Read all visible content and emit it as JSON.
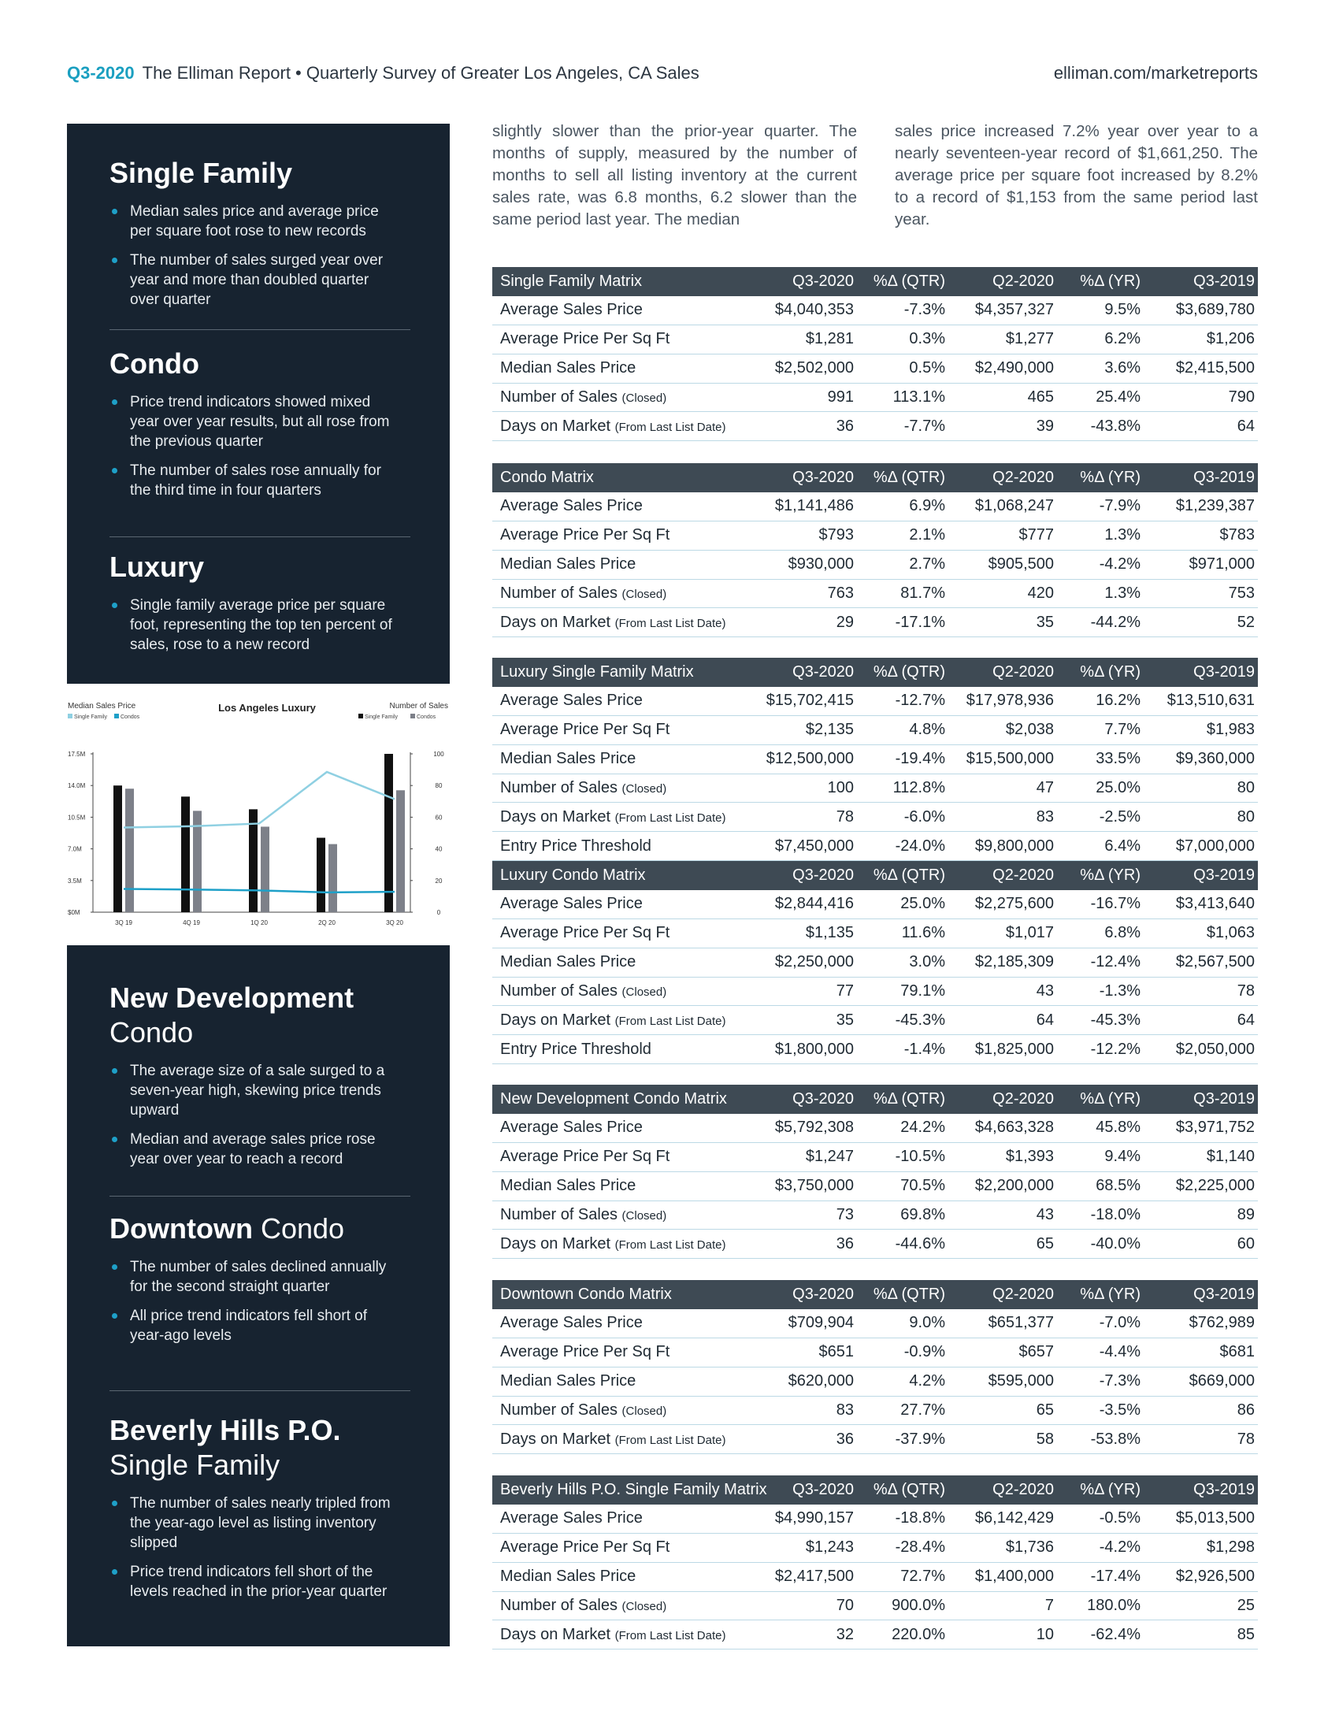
{
  "header": {
    "quarter": "Q3-2020",
    "title": "The Elliman Report • Quarterly Survey of Greater Los Angeles, CA Sales",
    "url": "elliman.com/marketreports"
  },
  "intro": [
    "slightly slower than the prior-year quarter. The months of supply, measured by the number of months to sell all listing inventory at the current sales rate, was 6.8 months, 6.2 slower than the same period last year. The median",
    "sales price increased 7.2% year over year to a nearly seventeen-year record of $1,661,250. The average price per square foot increased by 8.2% to a record of $1,153 from the same period last year."
  ],
  "sidebar": {
    "panels": [
      {
        "sections": [
          {
            "title": "Single Family",
            "bullets": [
              "Median sales price and average price per square foot rose to new records",
              "The number of sales surged year over year and more than doubled quarter over quarter"
            ]
          },
          {
            "title": "Condo",
            "bullets": [
              "Price trend indicators showed mixed year over year results, but all rose from the previous quarter",
              "The number of sales rose annually for the third time in four quarters"
            ]
          },
          {
            "title": "Luxury",
            "bullets": [
              "Single family average price per square foot, representing the top ten percent of sales, rose to a new record"
            ]
          }
        ]
      },
      {
        "sections": [
          {
            "title": "New Development",
            "subtitle": "Condo",
            "bullets": [
              "The average size of a sale surged to a seven-year high, skewing price trends upward",
              "Median and average sales price rose year over year to reach a record"
            ]
          },
          {
            "title": "Downtown",
            "subtitle": "Condo",
            "bullets": [
              "The number of sales declined annually for the second straight quarter",
              "All price trend indicators fell short of year-ago levels"
            ]
          },
          {
            "title": "Beverly Hills P.O.",
            "subtitle": "Single Family",
            "bullets": [
              "The number of sales nearly tripled from the year-ago level as listing inventory slipped",
              "Price trend indicators fell short of the levels reached in the prior-year quarter"
            ]
          }
        ]
      }
    ]
  },
  "chart": {
    "title": "Los Angeles Luxury",
    "y_label": "Median Sales Price",
    "y2_label": "Number of Sales",
    "categories": [
      "3Q 19",
      "4Q 19",
      "1Q 20",
      "2Q 20",
      "3Q 20"
    ],
    "ylim": [
      0,
      17.5
    ],
    "yticks": [
      {
        "value": 0,
        "label": "$0M"
      },
      {
        "value": 3.5,
        "label": "3.5M"
      },
      {
        "value": 7,
        "label": "7.0M"
      },
      {
        "value": 10.5,
        "label": "10.5M"
      },
      {
        "value": 14,
        "label": "14.0M"
      },
      {
        "value": 17.5,
        "label": "17.5M"
      }
    ],
    "y2lim": [
      0,
      100
    ],
    "y2ticks": [
      0,
      20,
      40,
      60,
      80,
      100
    ],
    "series": [
      {
        "name": "Single Family",
        "type": "line",
        "color": "#8fd0e2",
        "values": [
          9.36,
          9.5,
          9.8,
          15.5,
          12.5
        ]
      },
      {
        "name": "Condos",
        "type": "line",
        "color": "#1ea0c8",
        "values": [
          2.57,
          2.5,
          2.4,
          2.19,
          2.25
        ]
      },
      {
        "name": "Single Family",
        "type": "bar",
        "axis": "y2",
        "color": "#111111",
        "values": [
          80,
          73,
          65,
          47,
          100
        ]
      },
      {
        "name": "Condos",
        "type": "bar",
        "axis": "y2",
        "color": "#7d8089",
        "values": [
          78,
          64,
          54,
          43,
          77
        ]
      }
    ]
  },
  "tables": [
    {
      "header": [
        "Single Family Matrix",
        "Q3-2020",
        "%Δ (QTR)",
        "Q2-2020",
        "%Δ (YR)",
        "Q3-2019"
      ],
      "rows": [
        {
          "label": "Average Sales Price",
          "cells": [
            "$4,040,353",
            "-7.3%",
            "$4,357,327",
            "9.5%",
            "$3,689,780"
          ]
        },
        {
          "label": "Average Price Per Sq Ft",
          "cells": [
            "$1,281",
            "0.3%",
            "$1,277",
            "6.2%",
            "$1,206"
          ]
        },
        {
          "label": "Median Sales Price",
          "cells": [
            "$2,502,000",
            "0.5%",
            "$2,490,000",
            "3.6%",
            "$2,415,500"
          ]
        },
        {
          "label": "Number of Sales",
          "note": "(Closed)",
          "cells": [
            "991",
            "113.1%",
            "465",
            "25.4%",
            "790"
          ]
        },
        {
          "label": "Days on Market",
          "note": "(From Last List Date)",
          "cells": [
            "36",
            "-7.7%",
            "39",
            "-43.8%",
            "64"
          ]
        }
      ]
    },
    {
      "header": [
        "Condo Matrix",
        "Q3-2020",
        "%Δ (QTR)",
        "Q2-2020",
        "%Δ (YR)",
        "Q3-2019"
      ],
      "rows": [
        {
          "label": "Average Sales Price",
          "cells": [
            "$1,141,486",
            "6.9%",
            "$1,068,247",
            "-7.9%",
            "$1,239,387"
          ]
        },
        {
          "label": "Average Price Per Sq Ft",
          "cells": [
            "$793",
            "2.1%",
            "$777",
            "1.3%",
            "$783"
          ]
        },
        {
          "label": "Median Sales Price",
          "cells": [
            "$930,000",
            "2.7%",
            "$905,500",
            "-4.2%",
            "$971,000"
          ]
        },
        {
          "label": "Number of Sales",
          "note": "(Closed)",
          "cells": [
            "763",
            "81.7%",
            "420",
            "1.3%",
            "753"
          ]
        },
        {
          "label": "Days on Market",
          "note": "(From Last List Date)",
          "cells": [
            "29",
            "-17.1%",
            "35",
            "-44.2%",
            "52"
          ]
        }
      ]
    },
    {
      "header": [
        "Luxury Single Family Matrix",
        "Q3-2020",
        "%Δ (QTR)",
        "Q2-2020",
        "%Δ (YR)",
        "Q3-2019"
      ],
      "rows": [
        {
          "label": "Average Sales Price",
          "cells": [
            "$15,702,415",
            "-12.7%",
            "$17,978,936",
            "16.2%",
            "$13,510,631"
          ]
        },
        {
          "label": "Average Price Per Sq Ft",
          "cells": [
            "$2,135",
            "4.8%",
            "$2,038",
            "7.7%",
            "$1,983"
          ]
        },
        {
          "label": "Median Sales Price",
          "cells": [
            "$12,500,000",
            "-19.4%",
            "$15,500,000",
            "33.5%",
            "$9,360,000"
          ]
        },
        {
          "label": "Number of Sales",
          "note": "(Closed)",
          "cells": [
            "100",
            "112.8%",
            "47",
            "25.0%",
            "80"
          ]
        },
        {
          "label": "Days on Market",
          "note": "(From Last List Date)",
          "cells": [
            "78",
            "-6.0%",
            "83",
            "-2.5%",
            "80"
          ]
        },
        {
          "label": "Entry Price Threshold",
          "cells": [
            "$7,450,000",
            "-24.0%",
            "$9,800,000",
            "6.4%",
            "$7,000,000"
          ]
        }
      ]
    },
    {
      "header": [
        "Luxury Condo Matrix",
        "Q3-2020",
        "%Δ (QTR)",
        "Q2-2020",
        "%Δ (YR)",
        "Q3-2019"
      ],
      "rows": [
        {
          "label": "Average Sales Price",
          "cells": [
            "$2,844,416",
            "25.0%",
            "$2,275,600",
            "-16.7%",
            "$3,413,640"
          ]
        },
        {
          "label": "Average Price Per Sq Ft",
          "cells": [
            "$1,135",
            "11.6%",
            "$1,017",
            "6.8%",
            "$1,063"
          ]
        },
        {
          "label": "Median Sales Price",
          "cells": [
            "$2,250,000",
            "3.0%",
            "$2,185,309",
            "-12.4%",
            "$2,567,500"
          ]
        },
        {
          "label": "Number of Sales",
          "note": "(Closed)",
          "cells": [
            "77",
            "79.1%",
            "43",
            "-1.3%",
            "78"
          ]
        },
        {
          "label": "Days on Market",
          "note": "(From Last List Date)",
          "cells": [
            "35",
            "-45.3%",
            "64",
            "-45.3%",
            "64"
          ]
        },
        {
          "label": "Entry Price Threshold",
          "cells": [
            "$1,800,000",
            "-1.4%",
            "$1,825,000",
            "-12.2%",
            "$2,050,000"
          ]
        }
      ]
    },
    {
      "header": [
        "New Development Condo Matrix",
        "Q3-2020",
        "%Δ (QTR)",
        "Q2-2020",
        "%Δ (YR)",
        "Q3-2019"
      ],
      "rows": [
        {
          "label": "Average Sales Price",
          "cells": [
            "$5,792,308",
            "24.2%",
            "$4,663,328",
            "45.8%",
            "$3,971,752"
          ]
        },
        {
          "label": "Average Price Per Sq Ft",
          "cells": [
            "$1,247",
            "-10.5%",
            "$1,393",
            "9.4%",
            "$1,140"
          ]
        },
        {
          "label": "Median Sales Price",
          "cells": [
            "$3,750,000",
            "70.5%",
            "$2,200,000",
            "68.5%",
            "$2,225,000"
          ]
        },
        {
          "label": "Number of Sales",
          "note": "(Closed)",
          "cells": [
            "73",
            "69.8%",
            "43",
            "-18.0%",
            "89"
          ]
        },
        {
          "label": "Days on Market",
          "note": "(From Last List Date)",
          "cells": [
            "36",
            "-44.6%",
            "65",
            "-40.0%",
            "60"
          ]
        }
      ]
    },
    {
      "header": [
        "Downtown Condo Matrix",
        "Q3-2020",
        "%Δ (QTR)",
        "Q2-2020",
        "%Δ (YR)",
        "Q3-2019"
      ],
      "rows": [
        {
          "label": "Average Sales Price",
          "cells": [
            "$709,904",
            "9.0%",
            "$651,377",
            "-7.0%",
            "$762,989"
          ]
        },
        {
          "label": "Average Price Per Sq Ft",
          "cells": [
            "$651",
            "-0.9%",
            "$657",
            "-4.4%",
            "$681"
          ]
        },
        {
          "label": "Median Sales Price",
          "cells": [
            "$620,000",
            "4.2%",
            "$595,000",
            "-7.3%",
            "$669,000"
          ]
        },
        {
          "label": "Number of Sales",
          "note": "(Closed)",
          "cells": [
            "83",
            "27.7%",
            "65",
            "-3.5%",
            "86"
          ]
        },
        {
          "label": "Days on Market",
          "note": "(From Last List Date)",
          "cells": [
            "36",
            "-37.9%",
            "58",
            "-53.8%",
            "78"
          ]
        }
      ]
    },
    {
      "header": [
        "Beverly Hills P.O. Single Family Matrix",
        "Q3-2020",
        "%Δ (QTR)",
        "Q2-2020",
        "%Δ (YR)",
        "Q3-2019"
      ],
      "rows": [
        {
          "label": "Average Sales Price",
          "cells": [
            "$4,990,157",
            "-18.8%",
            "$6,142,429",
            "-0.5%",
            "$5,013,500"
          ]
        },
        {
          "label": "Average Price Per Sq Ft",
          "cells": [
            "$1,243",
            "-28.4%",
            "$1,736",
            "-4.2%",
            "$1,298"
          ]
        },
        {
          "label": "Median Sales Price",
          "cells": [
            "$2,417,500",
            "72.7%",
            "$1,400,000",
            "-17.4%",
            "$2,926,500"
          ]
        },
        {
          "label": "Number of Sales",
          "note": "(Closed)",
          "cells": [
            "70",
            "900.0%",
            "7",
            "180.0%",
            "25"
          ]
        },
        {
          "label": "Days on Market",
          "note": "(From Last List Date)",
          "cells": [
            "32",
            "220.0%",
            "10",
            "-62.4%",
            "85"
          ]
        }
      ]
    }
  ]
}
